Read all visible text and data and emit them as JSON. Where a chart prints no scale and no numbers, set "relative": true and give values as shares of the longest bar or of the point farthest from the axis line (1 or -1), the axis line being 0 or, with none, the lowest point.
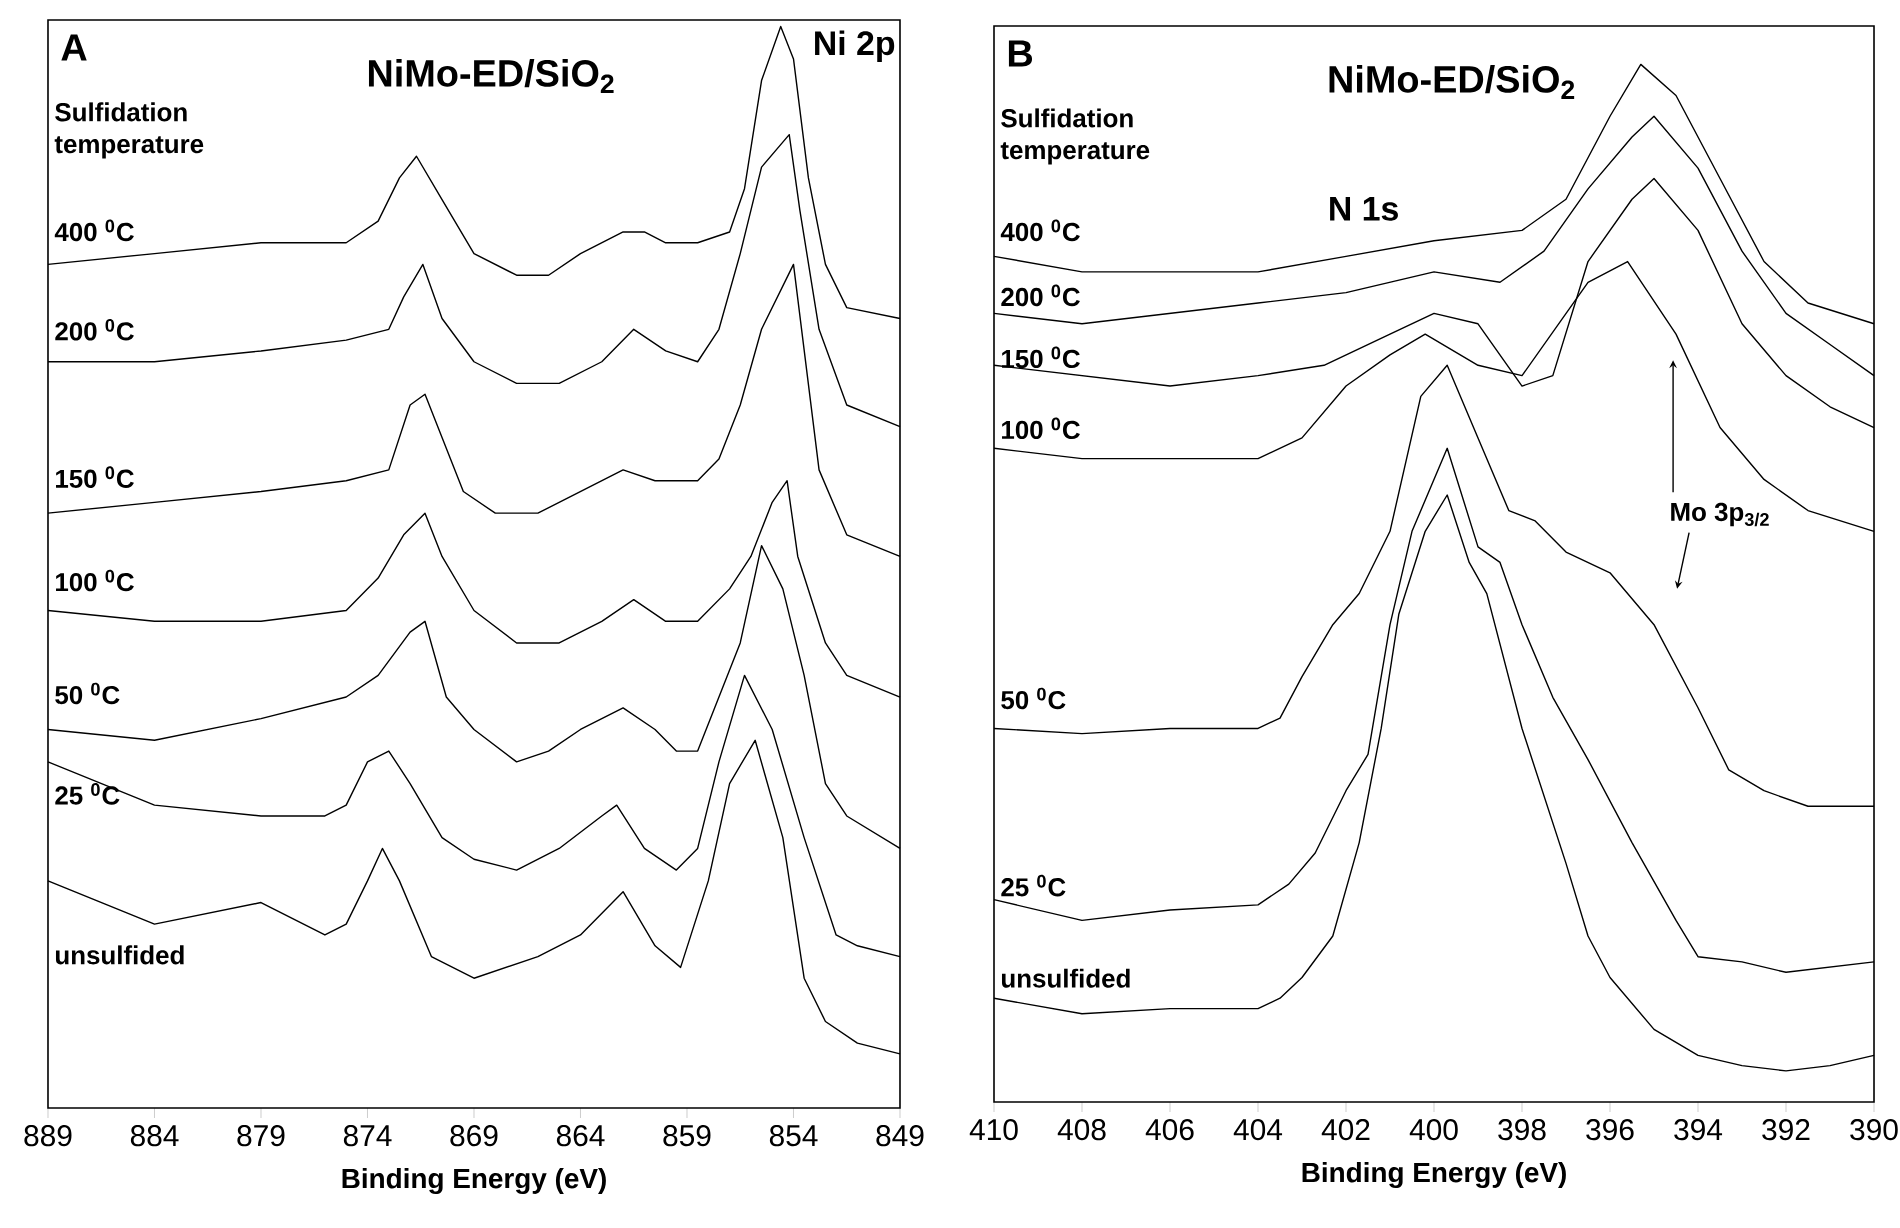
{
  "chart_data": [
    {
      "type": "line",
      "title": "NiMo-ED/SiO$_{2}$",
      "xlabel": "Binding Energy (eV)",
      "legend_title": "Sulfidation temperature",
      "relative": true,
      "tick_labels": "x",
      "xlim": [
        889,
        849
      ],
      "xticks": [
        889,
        884,
        879,
        874,
        869,
        864,
        859,
        854,
        849
      ],
      "annotations": [
        "A",
        "Ni 2p"
      ],
      "series": [
        {
          "name": "400 $^{0}$C",
          "color": "#000000",
          "x": [
            889,
            884,
            879,
            875,
            873.5,
            872.5,
            871.7,
            870.5,
            869,
            867,
            865.5,
            864,
            862,
            861,
            860,
            858.5,
            857,
            856.3,
            855.5,
            854.6,
            854,
            853.3,
            852.5,
            851.5,
            849
          ],
          "values": [
            0.78,
            0.79,
            0.8,
            0.8,
            0.82,
            0.86,
            0.88,
            0.84,
            0.79,
            0.77,
            0.77,
            0.79,
            0.81,
            0.81,
            0.8,
            0.8,
            0.81,
            0.85,
            0.95,
            1.0,
            0.97,
            0.86,
            0.78,
            0.74,
            0.73
          ]
        },
        {
          "name": "200 $^{0}$C",
          "color": "#000000",
          "x": [
            889,
            884,
            879,
            875,
            873,
            872.3,
            871.4,
            870.5,
            869,
            867,
            865,
            863,
            861.5,
            860,
            858.5,
            857.5,
            856.5,
            855.5,
            854.2,
            853.7,
            852.8,
            851.5,
            849
          ],
          "values": [
            0.69,
            0.69,
            0.7,
            0.71,
            0.72,
            0.75,
            0.78,
            0.73,
            0.69,
            0.67,
            0.67,
            0.69,
            0.72,
            0.7,
            0.69,
            0.72,
            0.79,
            0.87,
            0.9,
            0.83,
            0.72,
            0.65,
            0.63
          ]
        },
        {
          "name": "150 $^{0}$C",
          "color": "#000000",
          "x": [
            889,
            884,
            879,
            875,
            873,
            872,
            871.3,
            870.5,
            869.5,
            868,
            866,
            864,
            862,
            860.5,
            858.5,
            857.5,
            856.5,
            855.5,
            854,
            852.8,
            851.5,
            849
          ],
          "values": [
            0.55,
            0.56,
            0.57,
            0.58,
            0.59,
            0.65,
            0.66,
            0.62,
            0.57,
            0.55,
            0.55,
            0.57,
            0.59,
            0.58,
            0.58,
            0.6,
            0.65,
            0.72,
            0.78,
            0.59,
            0.53,
            0.51
          ]
        },
        {
          "name": "100 $^{0}$C",
          "color": "#000000",
          "x": [
            889,
            884,
            879,
            875,
            873.5,
            872.3,
            871.3,
            870.5,
            869,
            867,
            865,
            863,
            861.5,
            860,
            858.5,
            857,
            856,
            855,
            854.3,
            853.8,
            852.5,
            851.5,
            849
          ],
          "values": [
            0.46,
            0.45,
            0.45,
            0.46,
            0.49,
            0.53,
            0.55,
            0.51,
            0.46,
            0.43,
            0.43,
            0.45,
            0.47,
            0.45,
            0.45,
            0.48,
            0.51,
            0.56,
            0.58,
            0.51,
            0.43,
            0.4,
            0.38
          ]
        },
        {
          "name": "50 $^{0}$C",
          "color": "#000000",
          "x": [
            889,
            884,
            879,
            875,
            873.5,
            872,
            871.3,
            870.3,
            869,
            867,
            865.5,
            864,
            862,
            860.5,
            859.5,
            858.5,
            857.5,
            856.5,
            855.5,
            854.5,
            853.5,
            852.5,
            851.5,
            849
          ],
          "values": [
            0.35,
            0.34,
            0.36,
            0.38,
            0.4,
            0.44,
            0.45,
            0.38,
            0.35,
            0.32,
            0.33,
            0.35,
            0.37,
            0.35,
            0.33,
            0.33,
            0.38,
            0.43,
            0.52,
            0.48,
            0.4,
            0.3,
            0.27,
            0.24
          ]
        },
        {
          "name": "25 $^{0}$C",
          "color": "#000000",
          "x": [
            889,
            884,
            879,
            876,
            875,
            874,
            873,
            872,
            870.5,
            869,
            867,
            865,
            863,
            862.3,
            861,
            859.5,
            858.5,
            857.5,
            856.3,
            855,
            853.5,
            852,
            851,
            849
          ],
          "values": [
            0.32,
            0.28,
            0.27,
            0.27,
            0.28,
            0.32,
            0.33,
            0.3,
            0.25,
            0.23,
            0.22,
            0.24,
            0.27,
            0.28,
            0.24,
            0.22,
            0.24,
            0.32,
            0.4,
            0.35,
            0.25,
            0.16,
            0.15,
            0.14
          ]
        },
        {
          "name": "unsulfided",
          "color": "#000000",
          "x": [
            889,
            884,
            879,
            876,
            875,
            874,
            873.3,
            872.5,
            871,
            869,
            866,
            864,
            862,
            860.5,
            859.3,
            858,
            857,
            855.8,
            854.5,
            853.5,
            852.5,
            851,
            849
          ],
          "values": [
            0.21,
            0.17,
            0.19,
            0.16,
            0.17,
            0.21,
            0.24,
            0.21,
            0.14,
            0.12,
            0.14,
            0.16,
            0.2,
            0.15,
            0.13,
            0.21,
            0.3,
            0.34,
            0.25,
            0.12,
            0.08,
            0.06,
            0.05
          ]
        }
      ]
    },
    {
      "type": "line",
      "title": "NiMo-ED/SiO$_{2}$",
      "xlabel": "Binding Energy (eV)",
      "legend_title": "Sulfidation temperature",
      "relative": true,
      "tick_labels": "x",
      "xlim": [
        410,
        390
      ],
      "xticks": [
        410,
        408,
        406,
        404,
        402,
        400,
        398,
        396,
        394,
        392,
        390
      ],
      "annotations": [
        "B",
        "N 1s",
        "Mo 3p$_{3/2}$"
      ],
      "series": [
        {
          "name": "400 $^{0}$C",
          "color": "#000000",
          "x": [
            410,
            408,
            406,
            404,
            402,
            400,
            398,
            397,
            396,
            395.3,
            394.5,
            393.5,
            392.5,
            391.5,
            390
          ],
          "values": [
            0.815,
            0.8,
            0.8,
            0.8,
            0.815,
            0.83,
            0.84,
            0.87,
            0.95,
            1.0,
            0.97,
            0.89,
            0.81,
            0.77,
            0.75
          ]
        },
        {
          "name": "200 $^{0}$C",
          "color": "#000000",
          "x": [
            410,
            408,
            406,
            404,
            402,
            400,
            398.5,
            397.5,
            396.5,
            395.5,
            395,
            394,
            393,
            392,
            391,
            390
          ],
          "values": [
            0.76,
            0.75,
            0.76,
            0.77,
            0.78,
            0.8,
            0.79,
            0.82,
            0.88,
            0.93,
            0.95,
            0.9,
            0.82,
            0.76,
            0.73,
            0.7
          ]
        },
        {
          "name": "150 $^{0}$C",
          "color": "#000000",
          "x": [
            410,
            408,
            406,
            404,
            402.5,
            401,
            400,
            399,
            398,
            397.3,
            396.5,
            395.5,
            395,
            394,
            393,
            392,
            391,
            390
          ],
          "values": [
            0.71,
            0.7,
            0.69,
            0.7,
            0.71,
            0.74,
            0.76,
            0.75,
            0.69,
            0.7,
            0.81,
            0.87,
            0.89,
            0.84,
            0.75,
            0.7,
            0.67,
            0.65
          ]
        },
        {
          "name": "100 $^{0}$C",
          "color": "#000000",
          "x": [
            410,
            408,
            406,
            404,
            403,
            402,
            401,
            400.2,
            399,
            398,
            396.5,
            395.6,
            394.5,
            393.5,
            392.5,
            391.5,
            390
          ],
          "values": [
            0.63,
            0.62,
            0.62,
            0.62,
            0.64,
            0.69,
            0.72,
            0.74,
            0.71,
            0.7,
            0.79,
            0.81,
            0.74,
            0.65,
            0.6,
            0.57,
            0.55
          ]
        },
        {
          "name": "50 $^{0}$C",
          "color": "#000000",
          "x": [
            410,
            408,
            406,
            404,
            403.5,
            403,
            402.3,
            401.7,
            401,
            400.3,
            399.7,
            399,
            398.3,
            397.7,
            397,
            396,
            395,
            394,
            393.3,
            392.5,
            391.5,
            390
          ],
          "values": [
            0.36,
            0.355,
            0.36,
            0.36,
            0.37,
            0.41,
            0.46,
            0.49,
            0.55,
            0.68,
            0.71,
            0.64,
            0.57,
            0.56,
            0.53,
            0.51,
            0.46,
            0.38,
            0.32,
            0.3,
            0.285,
            0.285
          ]
        },
        {
          "name": "25 $^{0}$C",
          "color": "#000000",
          "x": [
            410,
            408,
            406,
            404,
            403.3,
            402.7,
            402,
            401.5,
            401,
            400.5,
            399.7,
            399,
            398.5,
            398,
            397.3,
            396.5,
            395.5,
            394.5,
            394,
            393,
            392,
            391,
            390
          ],
          "values": [
            0.195,
            0.175,
            0.185,
            0.19,
            0.21,
            0.24,
            0.3,
            0.335,
            0.46,
            0.55,
            0.63,
            0.535,
            0.52,
            0.46,
            0.39,
            0.33,
            0.25,
            0.175,
            0.14,
            0.135,
            0.125,
            0.13,
            0.135
          ]
        },
        {
          "name": "unsulfided",
          "color": "#000000",
          "x": [
            410,
            408,
            406,
            404,
            403.5,
            403,
            402.3,
            401.7,
            401.2,
            400.8,
            400.2,
            399.7,
            399.2,
            398.8,
            398,
            397,
            396.5,
            396,
            395,
            394,
            393,
            392,
            391,
            390
          ],
          "values": [
            0.1,
            0.085,
            0.09,
            0.09,
            0.1,
            0.12,
            0.16,
            0.25,
            0.36,
            0.47,
            0.55,
            0.585,
            0.52,
            0.49,
            0.36,
            0.23,
            0.16,
            0.12,
            0.07,
            0.045,
            0.035,
            0.03,
            0.035,
            0.045
          ]
        }
      ]
    }
  ]
}
